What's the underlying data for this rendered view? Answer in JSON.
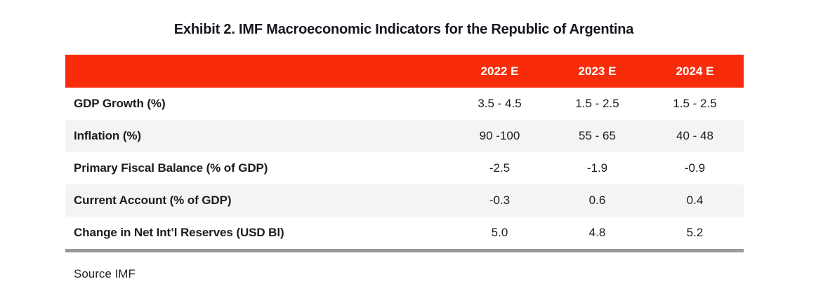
{
  "title": "Exhibit 2. IMF Macroeconomic Indicators for the Republic of Argentina",
  "table": {
    "header": {
      "columns": [
        "2022 E",
        "2023 E",
        "2024 E"
      ],
      "bg_color": "#f82c0b",
      "text_color": "#ffffff"
    },
    "rows": [
      {
        "label": "GDP Growth (%)",
        "values": [
          "3.5 - 4.5",
          "1.5 - 2.5",
          "1.5 - 2.5"
        ]
      },
      {
        "label": "Inflation (%)",
        "values": [
          "90 -100",
          "55 - 65",
          "40 - 48"
        ]
      },
      {
        "label": "Primary Fiscal Balance (% of GDP)",
        "values": [
          "-2.5",
          "-1.9",
          "-0.9"
        ]
      },
      {
        "label": "Current Account (% of GDP)",
        "values": [
          "-0.3",
          "0.6",
          "0.4"
        ]
      },
      {
        "label": "Change in Net Int’l Reserves (USD Bl)",
        "values": [
          "5.0",
          "4.8",
          "5.2"
        ]
      }
    ],
    "stripe_color": "#f5f4f4",
    "bottom_rule_color": "#9a9a9a"
  },
  "source": "Source IMF"
}
